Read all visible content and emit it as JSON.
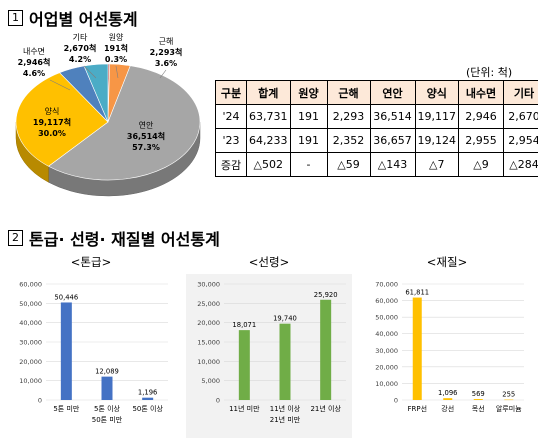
{
  "section1": {
    "num": "1",
    "title": "어업별 어선통계"
  },
  "section2": {
    "num": "2",
    "title": "톤급· 선령· 재질별 어선통계"
  },
  "unit_label": "(단위: 척)",
  "table": {
    "headers": [
      "구분",
      "합계",
      "원양",
      "근해",
      "연안",
      "양식",
      "내수면",
      "기타"
    ],
    "rows": [
      [
        "'24",
        "63,731",
        "191",
        "2,293",
        "36,514",
        "19,117",
        "2,946",
        "2,670"
      ],
      [
        "'23",
        "64,233",
        "191",
        "2,352",
        "36,657",
        "19,124",
        "2,955",
        "2,954"
      ],
      [
        "증감",
        "△502",
        "-",
        "△59",
        "△143",
        "△7",
        "△9",
        "△284"
      ]
    ]
  },
  "chart_data": [
    {
      "type": "pie",
      "title": "",
      "slices": [
        {
          "label": "원양",
          "count": "191척",
          "value": 191,
          "percent": "0.3%",
          "color": "#c0504d"
        },
        {
          "label": "근해",
          "count": "2,293척",
          "value": 2293,
          "percent": "3.6%",
          "color": "#f79646"
        },
        {
          "label": "연안",
          "count": "36,514척",
          "value": 36514,
          "percent": "57.3%",
          "color": "#a6a6a6"
        },
        {
          "label": "양식",
          "count": "19,117척",
          "value": 19117,
          "percent": "30.0%",
          "color": "#ffc000"
        },
        {
          "label": "내수면",
          "count": "2,946척",
          "value": 2946,
          "percent": "4.6%",
          "color": "#4f81bd"
        },
        {
          "label": "기타",
          "count": "2,670척",
          "value": 2670,
          "percent": "4.2%",
          "color": "#4bacc6"
        }
      ]
    },
    {
      "type": "bar",
      "title": "<톤급>",
      "categories": [
        "5톤 미만",
        "5톤 이상\n50톤 미만",
        "50톤 이상"
      ],
      "values": [
        50446,
        12089,
        1196
      ],
      "value_labels": [
        "50,446",
        "12,089",
        "1,196"
      ],
      "ylim": [
        0,
        60000
      ],
      "yticks": [
        "0",
        "10,000",
        "20,000",
        "30,000",
        "40,000",
        "50,000",
        "60,000"
      ],
      "color": "#4472c4",
      "grid": true
    },
    {
      "type": "bar",
      "title": "<선령>",
      "categories": [
        "11년 미만",
        "11년 이상\n21년 미만",
        "21년 이상"
      ],
      "values": [
        18071,
        19740,
        25920
      ],
      "value_labels": [
        "18,071",
        "19,740",
        "25,920"
      ],
      "ylim": [
        0,
        30000
      ],
      "yticks": [
        "0",
        "5,000",
        "10,000",
        "15,000",
        "20,000",
        "25,000",
        "30,000"
      ],
      "color": "#70ad47",
      "grid": true
    },
    {
      "type": "bar",
      "title": "<재질>",
      "categories": [
        "FRP선",
        "강선",
        "목선",
        "알루미늄"
      ],
      "values": [
        61811,
        1096,
        569,
        255
      ],
      "value_labels": [
        "61,811",
        "1,096",
        "569",
        "255"
      ],
      "ylim": [
        0,
        70000
      ],
      "yticks": [
        "0",
        "10,000",
        "20,000",
        "30,000",
        "40,000",
        "50,000",
        "60,000",
        "70,000"
      ],
      "color": "#ffc000",
      "grid": true
    }
  ]
}
